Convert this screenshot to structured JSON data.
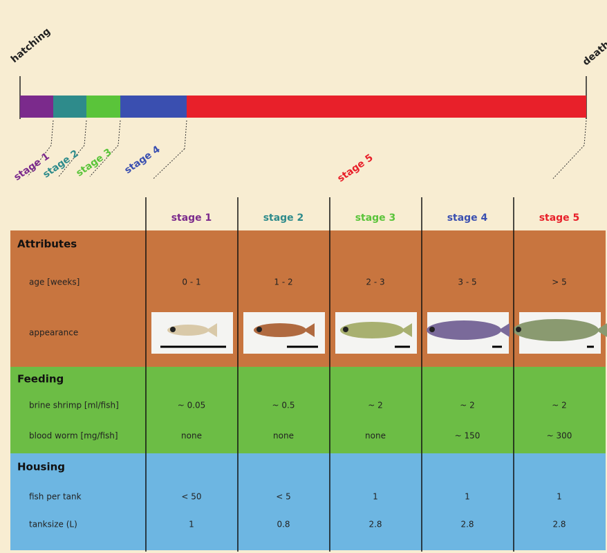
{
  "timeline": {
    "start": "hatching",
    "end": "death",
    "stages": [
      "stage 1",
      "stage 2",
      "stage 3",
      "stage 4",
      "stage 5"
    ]
  },
  "table": {
    "columns": [
      "stage 1",
      "stage 2",
      "stage 3",
      "stage 4",
      "stage 5"
    ],
    "sections": [
      {
        "title": "Attributes",
        "rows": [
          {
            "label": "age [weeks]",
            "cells": [
              "0 - 1",
              "1 - 2",
              "2 - 3",
              "3 - 5",
              "> 5"
            ]
          },
          {
            "label": "appearance"
          }
        ]
      },
      {
        "title": "Feeding",
        "rows": [
          {
            "label": "brine shrimp [ml/fish]",
            "cells": [
              "~ 0.05",
              "~ 0.5",
              "~ 2",
              "~ 2",
              "~ 2"
            ]
          },
          {
            "label": "blood worm [mg/fish]",
            "cells": [
              "none",
              "none",
              "none",
              "~ 150",
              "~ 300"
            ]
          }
        ]
      },
      {
        "title": "Housing",
        "rows": [
          {
            "label": "fish per tank",
            "cells": [
              "< 50",
              "< 5",
              "1",
              "1",
              "1"
            ]
          },
          {
            "label": "tanksize (L)",
            "cells": [
              "1",
              "0.8",
              "2.8",
              "2.8",
              "2.8"
            ]
          }
        ]
      }
    ]
  }
}
